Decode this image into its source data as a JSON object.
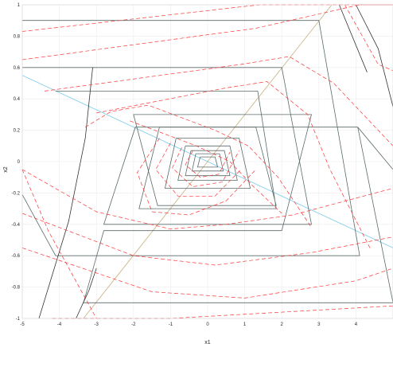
{
  "chart_data": {
    "type": "line",
    "xlabel": "x1",
    "ylabel": "x2",
    "xlim": [
      -5,
      5
    ],
    "ylim": [
      -1,
      1
    ],
    "grid": true,
    "x_ticks": [
      "-5",
      "-4",
      "-3",
      "-2",
      "-1",
      "0",
      "1",
      "2",
      "3",
      "4"
    ],
    "y_ticks": [
      "-1",
      "-0.8",
      "-0.6",
      "-0.4",
      "-0.2",
      "0",
      "0.2",
      "0.4",
      "0.6",
      "0.8",
      "1"
    ],
    "switching_lines": [
      {
        "color": "#87ceeb",
        "x": [
          -5,
          5
        ],
        "y": [
          0.55,
          -0.55
        ]
      },
      {
        "color": "#cdb78b",
        "x": [
          -3.35,
          3.35
        ],
        "y": [
          -1.0,
          1.0
        ]
      }
    ],
    "spiral": {
      "color": "#5a6a6a",
      "loops": [
        {
          "x": [
            -5,
            3.0,
            4.1,
            -4.1,
            -5
          ],
          "y": [
            0.9,
            0.9,
            -0.6,
            -0.6,
            -0.21
          ]
        },
        {
          "x": [
            -5,
            2.0,
            2.8,
            -2.8,
            -1.95,
            4.05,
            5
          ],
          "y": [
            0.6,
            0.6,
            -0.4,
            -0.4,
            0.22,
            0.22,
            -0.05
          ]
        },
        {
          "x": [
            -4.1,
            1.35,
            1.85,
            -1.85,
            -1.3,
            1.3,
            1.85,
            -1.35,
            -2.0,
            2.8,
            2.0,
            -2.8,
            -3.35,
            5,
            4.05
          ],
          "y": [
            0.45,
            0.45,
            -0.3,
            -0.3,
            0.22,
            0.22,
            -0.28,
            -0.28,
            0.3,
            0.3,
            -0.44,
            -0.44,
            -0.9,
            -0.9,
            0.22
          ]
        },
        {
          "x": [
            -0.85,
            0.85,
            1.15,
            -1.15,
            -0.85
          ],
          "y": [
            0.15,
            0.15,
            -0.17,
            -0.17,
            0.15
          ]
        },
        {
          "x": [
            -0.6,
            0.6,
            0.8,
            -0.8,
            -0.6
          ],
          "y": [
            0.1,
            0.1,
            -0.12,
            -0.12,
            0.1
          ]
        },
        {
          "x": [
            -0.45,
            0.45,
            0.6,
            -0.6,
            -0.45
          ],
          "y": [
            0.07,
            0.07,
            -0.09,
            -0.09,
            0.07
          ]
        },
        {
          "x": [
            -0.32,
            0.32,
            0.42,
            -0.42,
            -0.32
          ],
          "y": [
            0.05,
            0.05,
            -0.06,
            -0.06,
            0.05
          ]
        },
        {
          "x": [
            -0.2,
            0.2,
            0.27,
            -0.27,
            -0.2
          ],
          "y": [
            0.03,
            0.03,
            -0.035,
            -0.035,
            0.03
          ]
        }
      ]
    },
    "level_curves": {
      "color": "#ff3333",
      "style": "dashed",
      "curves": [
        {
          "x": [
            -5,
            1.4,
            5
          ],
          "y": [
            0.83,
            1.0,
            1.0
          ]
        },
        {
          "x": [
            -5,
            1.3,
            4.1,
            5
          ],
          "y": [
            0.65,
            0.85,
            1.0,
            1.0
          ]
        },
        {
          "x": [
            -4.4,
            0.9,
            2.2,
            3.4,
            5
          ],
          "y": [
            0.45,
            0.62,
            0.67,
            0.5,
            0.1
          ]
        },
        {
          "x": [
            -3.0,
            0.5,
            1.6,
            2.7,
            3.3,
            4.4
          ],
          "y": [
            0.31,
            0.47,
            0.51,
            0.3,
            -0.05,
            -0.56
          ]
        },
        {
          "x": [
            -3.3,
            -2.6,
            -1.6,
            0.2,
            1.1,
            1.9,
            2.8
          ],
          "y": [
            0.22,
            0.32,
            0.36,
            0.2,
            0.1,
            -0.1,
            -0.42
          ]
        },
        {
          "x": [
            -2.1,
            -0.3,
            0.6,
            1.2,
            2.0
          ],
          "y": [
            0.26,
            0.1,
            0.0,
            -0.15,
            -0.33
          ]
        },
        {
          "x": [
            -5,
            -3.0,
            -1.0,
            0.5,
            2.3,
            5
          ],
          "y": [
            -0.05,
            -0.32,
            -0.43,
            -0.4,
            -0.34,
            -0.17
          ]
        },
        {
          "x": [
            -5,
            -2.0,
            0.2,
            2.8,
            5
          ],
          "y": [
            -0.33,
            -0.6,
            -0.66,
            -0.58,
            -0.48
          ]
        },
        {
          "x": [
            -5,
            -1.5,
            1.0,
            4.0,
            5
          ],
          "y": [
            -0.55,
            -0.83,
            -0.87,
            -0.76,
            -0.68
          ]
        },
        {
          "x": [
            -4.2,
            -1.0,
            5
          ],
          "y": [
            -1.0,
            -1.0,
            -0.92
          ]
        },
        {
          "x": [
            -5,
            -4.3,
            -3.0
          ],
          "y": [
            -0.05,
            -0.44,
            -1.0
          ]
        },
        {
          "x": [
            3.7,
            4.6,
            5
          ],
          "y": [
            1.0,
            0.62,
            0.58
          ]
        },
        {
          "x": [
            -1.3,
            -1.9,
            -1.5,
            -0.5,
            0.5,
            1.3
          ],
          "y": [
            0.15,
            -0.07,
            -0.32,
            -0.34,
            -0.25,
            -0.05
          ]
        },
        {
          "x": [
            -1.0,
            -1.4,
            -0.8,
            0.2,
            0.9
          ],
          "y": [
            0.12,
            -0.05,
            -0.22,
            -0.22,
            -0.05
          ]
        },
        {
          "x": [
            -0.7,
            -0.95,
            -0.4,
            0.4,
            0.85
          ],
          "y": [
            0.09,
            -0.04,
            -0.16,
            -0.13,
            0.07
          ]
        },
        {
          "x": [
            -0.4,
            -0.6,
            -0.2,
            0.3,
            0.6
          ],
          "y": [
            0.07,
            -0.02,
            -0.1,
            -0.08,
            0.06
          ]
        }
      ]
    },
    "edge_curves": {
      "color": "#333333",
      "curves": [
        {
          "x": [
            -4.55,
            -3.75,
            -3.3,
            -3.1
          ],
          "y": [
            -1.0,
            -0.38,
            0.15,
            0.6
          ]
        },
        {
          "x": [
            -3.55,
            -3.2,
            -3.0
          ],
          "y": [
            -1.0,
            -0.82,
            -0.68
          ]
        },
        {
          "x": [
            4.0,
            4.6,
            5
          ],
          "y": [
            1.0,
            0.72,
            0.35
          ]
        },
        {
          "x": [
            3.55,
            4.3
          ],
          "y": [
            1.0,
            0.57
          ]
        }
      ]
    }
  }
}
